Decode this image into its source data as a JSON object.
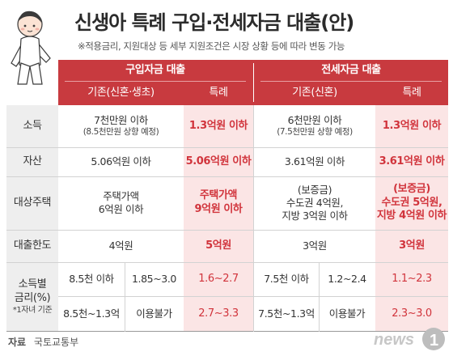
{
  "header": {
    "title": "신생아 특례 구입·전세자금 대출(안)",
    "note": "※적용금리, 지원대상 등 세부 지원조건은 시장 상황 등에 따라 변동 가능"
  },
  "columns": {
    "purchase_group": "구입자금 대출",
    "lease_group": "전세자금 대출",
    "purchase_base": "기존(신혼·생초)",
    "purchase_special": "특례",
    "lease_base": "기존(신혼)",
    "lease_special": "특례"
  },
  "rows": {
    "income": {
      "label": "소득",
      "purchase_base_1": "7천만원 이하",
      "purchase_base_2": "(8.5천만원 상향 예정)",
      "purchase_special": "1.3억원 이하",
      "lease_base_1": "6천만원 이하",
      "lease_base_2": "(7.5천만원 상향 예정)",
      "lease_special": "1.3억원 이하"
    },
    "assets": {
      "label": "자산",
      "purchase_base": "5.06억원 이하",
      "purchase_special": "5.06억원 이하",
      "lease_base": "3.61억원 이하",
      "lease_special": "3.61억원 이하"
    },
    "target_house": {
      "label": "대상주택",
      "purchase_base_1": "주택가액",
      "purchase_base_2": "6억원 이하",
      "purchase_special_1": "주택가액",
      "purchase_special_2": "9억원 이하",
      "lease_base_1": "(보증금)",
      "lease_base_2": "수도권 4억원,",
      "lease_base_3": "지방 3억원 이하",
      "lease_special_1": "(보증금)",
      "lease_special_2": "수도권 5억원,",
      "lease_special_3": "지방 4억원 이하"
    },
    "loan_limit": {
      "label": "대출한도",
      "purchase_base": "4억원",
      "purchase_special": "5억원",
      "lease_base": "3억원",
      "lease_special": "3억원"
    },
    "rate": {
      "label_1": "소득별",
      "label_2": "금리(%)",
      "label_3": "*1자녀 기준",
      "r1_purchase_income": "8.5천 이하",
      "r1_purchase_rate": "1.85~3.0",
      "r1_purchase_special": "1.6~2.7",
      "r1_lease_income": "7.5천 이하",
      "r1_lease_rate": "1.2~2.4",
      "r1_lease_special": "1.1~2.3",
      "r2_purchase_income": "8.5천~1.3억",
      "r2_purchase_rate": "이용불가",
      "r2_purchase_special": "2.7~3.3",
      "r2_lease_income": "7.5천~1.3억",
      "r2_lease_rate": "이용불가",
      "r2_lease_special": "2.3~3.0"
    }
  },
  "footer": {
    "source_label": "자료",
    "source_value": "국토교통부",
    "logo_text": "news",
    "logo_number": "1"
  },
  "colors": {
    "header_red": "#c83a3f",
    "special_bg": "#fbe5e5",
    "special_text": "#d1343c",
    "label_bg": "#eeeeee"
  }
}
